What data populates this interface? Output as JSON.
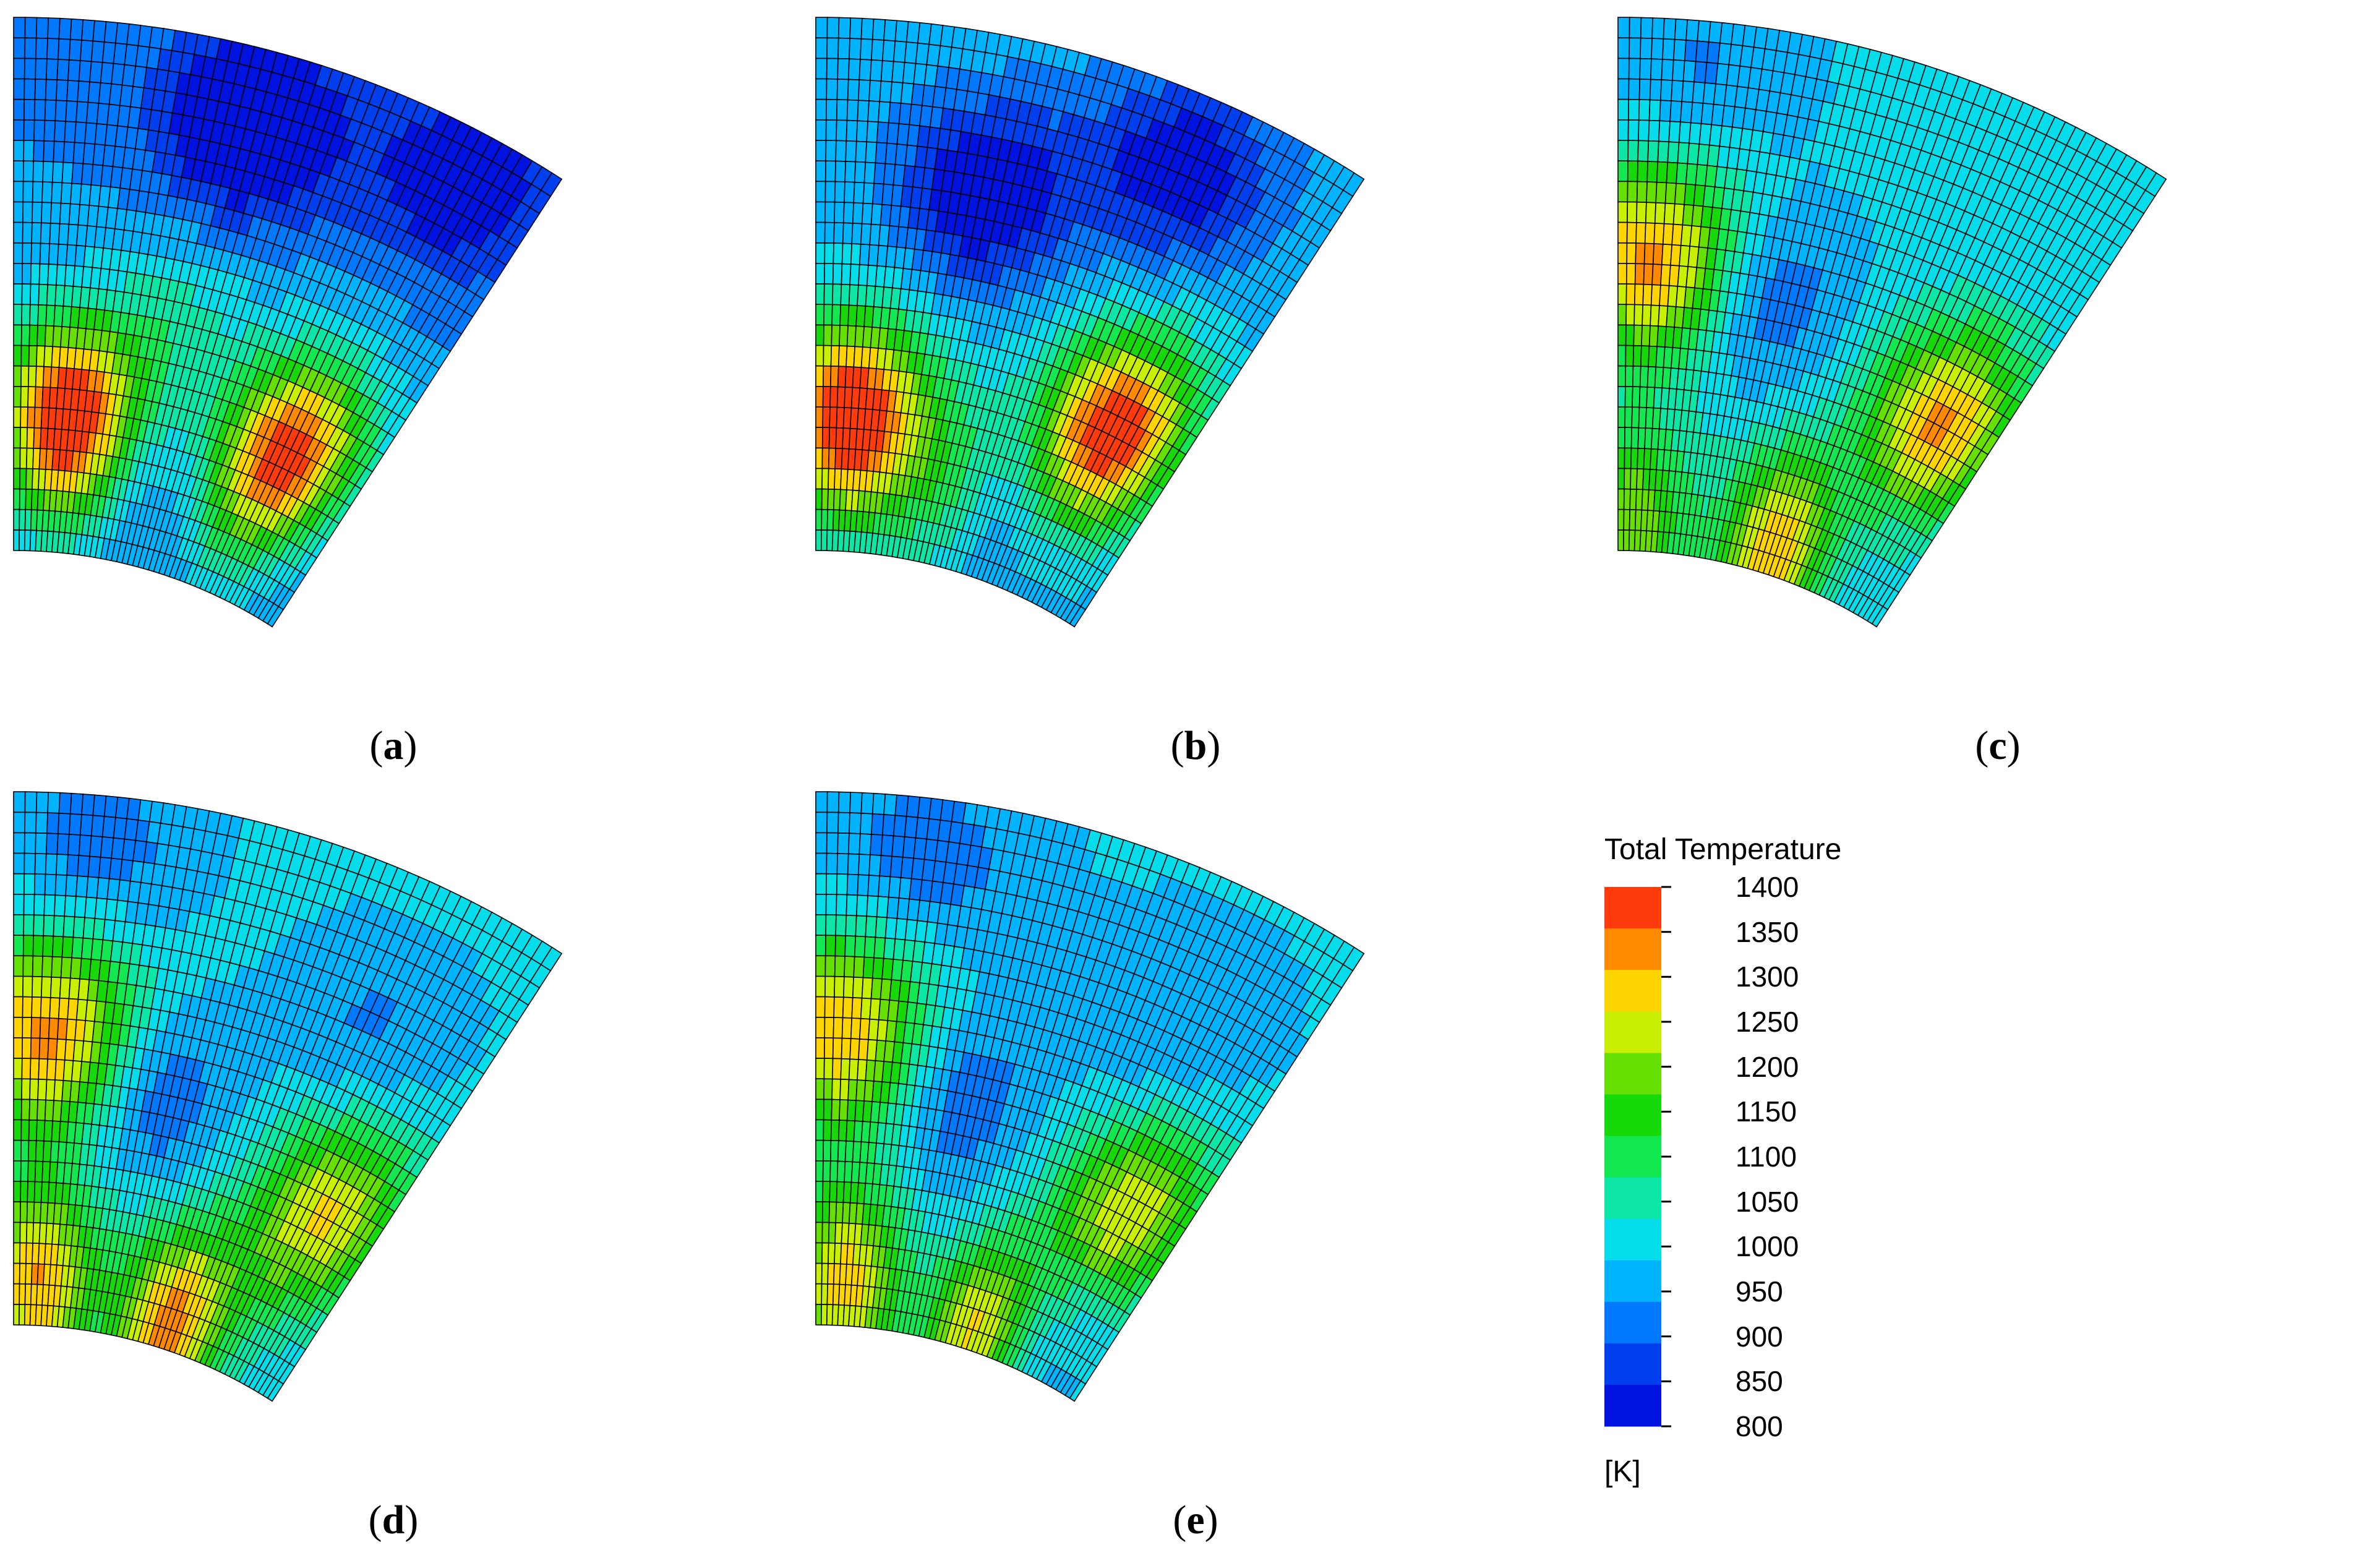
{
  "panels": [
    {
      "label": "a",
      "hot": [
        [
          0.15,
          0.75,
          1.25
        ],
        [
          0.78,
          0.7,
          1.1
        ],
        [
          0.4,
          0.55,
          0.25
        ],
        [
          0.65,
          0.85,
          0.2
        ]
      ],
      "cold": [
        [
          0.45,
          0.15,
          1.1
        ],
        [
          0.85,
          0.1,
          0.8
        ],
        [
          0.55,
          0.88,
          0.25
        ]
      ],
      "base": 950
    },
    {
      "label": "b",
      "hot": [
        [
          0.1,
          0.75,
          1.2
        ],
        [
          0.8,
          0.65,
          1.15
        ],
        [
          0.4,
          0.82,
          0.35
        ]
      ],
      "cold": [
        [
          0.35,
          0.3,
          1.0
        ],
        [
          0.7,
          0.15,
          0.9
        ],
        [
          0.6,
          0.82,
          0.3
        ]
      ],
      "base": 980
    },
    {
      "label": "c",
      "hot": [
        [
          0.08,
          0.45,
          0.85
        ],
        [
          0.85,
          0.62,
          0.85
        ],
        [
          0.55,
          0.95,
          0.8
        ],
        [
          0.05,
          0.95,
          0.55
        ]
      ],
      "cold": [
        [
          0.35,
          0.5,
          0.55
        ],
        [
          0.15,
          0.1,
          0.35
        ],
        [
          0.75,
          0.8,
          0.25
        ]
      ],
      "base": 1010
    },
    {
      "label": "d",
      "hot": [
        [
          0.08,
          0.45,
          0.85
        ],
        [
          0.85,
          0.65,
          0.7
        ],
        [
          0.55,
          0.95,
          0.85
        ],
        [
          0.08,
          0.92,
          0.8
        ]
      ],
      "cold": [
        [
          0.35,
          0.55,
          0.55
        ],
        [
          0.15,
          0.1,
          0.45
        ],
        [
          0.75,
          0.3,
          0.35
        ]
      ],
      "base": 1010
    },
    {
      "label": "e",
      "hot": [
        [
          0.06,
          0.45,
          0.8
        ],
        [
          0.85,
          0.65,
          0.7
        ],
        [
          0.55,
          0.95,
          0.8
        ],
        [
          0.1,
          0.92,
          0.75
        ]
      ],
      "cold": [
        [
          0.35,
          0.55,
          0.5
        ],
        [
          0.2,
          0.12,
          0.45
        ],
        [
          0.75,
          0.3,
          0.3
        ],
        [
          0.45,
          0.88,
          0.35
        ],
        [
          0.8,
          0.88,
          0.3
        ]
      ],
      "base": 1005
    }
  ],
  "colorbar": {
    "title": "Total Temperature",
    "unit": "[K]",
    "ticks": [
      "1400",
      "1350",
      "1300",
      "1250",
      "1200",
      "1150",
      "1100",
      "1050",
      "1000",
      "950",
      "900",
      "850",
      "800"
    ],
    "colors": [
      "#ff3a0b",
      "#ff8a00",
      "#ffd500",
      "#c8f000",
      "#66e000",
      "#17d90a",
      "#14e850",
      "#0ce7a8",
      "#05ddea",
      "#00b4ff",
      "#0079ff",
      "#003fee",
      "#0012e0"
    ]
  }
}
